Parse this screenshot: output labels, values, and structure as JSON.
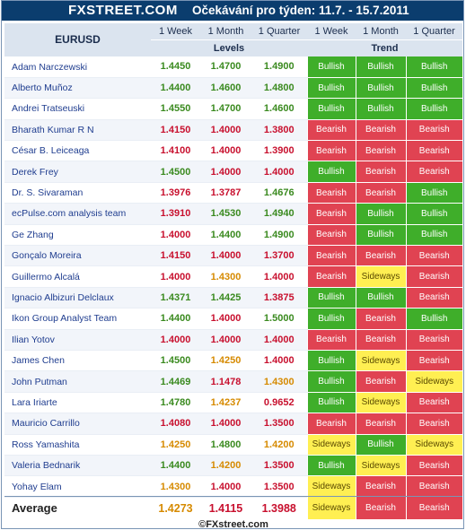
{
  "header": {
    "logo": "FXSTREET.COM",
    "title": "Očekávání pro týden: 11.7. - 15.7.2011"
  },
  "table": {
    "pair": "EURUSD",
    "periods": [
      "1 Week",
      "1 Month",
      "1 Quarter"
    ],
    "levels_label": "Levels",
    "trend_label": "Trend",
    "rows": [
      {
        "name": "Adam Narczewski",
        "levels": [
          "1.4450",
          "1.4700",
          "1.4900"
        ],
        "level_colors": [
          "green",
          "green",
          "green"
        ],
        "trend": [
          "Bullish",
          "Bullish",
          "Bullish"
        ]
      },
      {
        "name": "Alberto Muñoz",
        "levels": [
          "1.4400",
          "1.4600",
          "1.4800"
        ],
        "level_colors": [
          "green",
          "green",
          "green"
        ],
        "trend": [
          "Bullish",
          "Bullish",
          "Bullish"
        ]
      },
      {
        "name": "Andrei Tratseuski",
        "levels": [
          "1.4550",
          "1.4700",
          "1.4600"
        ],
        "level_colors": [
          "green",
          "green",
          "green"
        ],
        "trend": [
          "Bullish",
          "Bullish",
          "Bullish"
        ]
      },
      {
        "name": "Bharath Kumar R N",
        "levels": [
          "1.4150",
          "1.4000",
          "1.3800"
        ],
        "level_colors": [
          "red",
          "red",
          "red"
        ],
        "trend": [
          "Bearish",
          "Bearish",
          "Bearish"
        ]
      },
      {
        "name": "César B. Leiceaga",
        "levels": [
          "1.4100",
          "1.4000",
          "1.3900"
        ],
        "level_colors": [
          "red",
          "red",
          "red"
        ],
        "trend": [
          "Bearish",
          "Bearish",
          "Bearish"
        ]
      },
      {
        "name": "Derek Frey",
        "levels": [
          "1.4500",
          "1.4000",
          "1.4000"
        ],
        "level_colors": [
          "green",
          "red",
          "red"
        ],
        "trend": [
          "Bullish",
          "Bearish",
          "Bearish"
        ]
      },
      {
        "name": "Dr. S. Sivaraman",
        "levels": [
          "1.3976",
          "1.3787",
          "1.4676"
        ],
        "level_colors": [
          "red",
          "red",
          "green"
        ],
        "trend": [
          "Bearish",
          "Bearish",
          "Bullish"
        ]
      },
      {
        "name": "ecPulse.com analysis team",
        "levels": [
          "1.3910",
          "1.4530",
          "1.4940"
        ],
        "level_colors": [
          "red",
          "green",
          "green"
        ],
        "trend": [
          "Bearish",
          "Bullish",
          "Bullish"
        ]
      },
      {
        "name": "Ge Zhang",
        "levels": [
          "1.4000",
          "1.4400",
          "1.4900"
        ],
        "level_colors": [
          "red",
          "green",
          "green"
        ],
        "trend": [
          "Bearish",
          "Bullish",
          "Bullish"
        ]
      },
      {
        "name": "Gonçalo Moreira",
        "levels": [
          "1.4150",
          "1.4000",
          "1.3700"
        ],
        "level_colors": [
          "red",
          "red",
          "red"
        ],
        "trend": [
          "Bearish",
          "Bearish",
          "Bearish"
        ]
      },
      {
        "name": "Guillermo Alcalá",
        "levels": [
          "1.4000",
          "1.4300",
          "1.4000"
        ],
        "level_colors": [
          "red",
          "amber",
          "red"
        ],
        "trend": [
          "Bearish",
          "Sideways",
          "Bearish"
        ]
      },
      {
        "name": "Ignacio Albizuri Delclaux",
        "levels": [
          "1.4371",
          "1.4425",
          "1.3875"
        ],
        "level_colors": [
          "green",
          "green",
          "red"
        ],
        "trend": [
          "Bullish",
          "Bullish",
          "Bearish"
        ]
      },
      {
        "name": "Ikon Group Analyst Team",
        "levels": [
          "1.4400",
          "1.4000",
          "1.5000"
        ],
        "level_colors": [
          "green",
          "red",
          "green"
        ],
        "trend": [
          "Bullish",
          "Bearish",
          "Bullish"
        ]
      },
      {
        "name": "Ilian Yotov",
        "levels": [
          "1.4000",
          "1.4000",
          "1.4000"
        ],
        "level_colors": [
          "red",
          "red",
          "red"
        ],
        "trend": [
          "Bearish",
          "Bearish",
          "Bearish"
        ]
      },
      {
        "name": "James Chen",
        "levels": [
          "1.4500",
          "1.4250",
          "1.4000"
        ],
        "level_colors": [
          "green",
          "amber",
          "red"
        ],
        "trend": [
          "Bullish",
          "Sideways",
          "Bearish"
        ]
      },
      {
        "name": "John Putman",
        "levels": [
          "1.4469",
          "1.1478",
          "1.4300"
        ],
        "level_colors": [
          "green",
          "red",
          "amber"
        ],
        "trend": [
          "Bullish",
          "Bearish",
          "Sideways"
        ]
      },
      {
        "name": "Lara Iriarte",
        "levels": [
          "1.4780",
          "1.4237",
          "0.9652"
        ],
        "level_colors": [
          "green",
          "amber",
          "red"
        ],
        "trend": [
          "Bullish",
          "Sideways",
          "Bearish"
        ]
      },
      {
        "name": "Mauricio Carrillo",
        "levels": [
          "1.4080",
          "1.4000",
          "1.3500"
        ],
        "level_colors": [
          "red",
          "red",
          "red"
        ],
        "trend": [
          "Bearish",
          "Bearish",
          "Bearish"
        ]
      },
      {
        "name": "Ross Yamashita",
        "levels": [
          "1.4250",
          "1.4800",
          "1.4200"
        ],
        "level_colors": [
          "amber",
          "green",
          "amber"
        ],
        "trend": [
          "Sideways",
          "Bullish",
          "Sideways"
        ]
      },
      {
        "name": "Valeria Bednarik",
        "levels": [
          "1.4400",
          "1.4200",
          "1.3500"
        ],
        "level_colors": [
          "green",
          "amber",
          "red"
        ],
        "trend": [
          "Bullish",
          "Sideways",
          "Bearish"
        ]
      },
      {
        "name": "Yohay Elam",
        "levels": [
          "1.4300",
          "1.4000",
          "1.3500"
        ],
        "level_colors": [
          "amber",
          "red",
          "red"
        ],
        "trend": [
          "Sideways",
          "Bearish",
          "Bearish"
        ]
      }
    ],
    "average": {
      "label": "Average",
      "levels": [
        "1.4273",
        "1.4115",
        "1.3988"
      ],
      "level_colors": [
        "amber",
        "red",
        "red"
      ],
      "trend": [
        "Sideways",
        "Bearish",
        "Bearish"
      ]
    }
  },
  "footer": {
    "copyright": "©FXstreet.com"
  },
  "colors": {
    "bullish": "#3fae2a",
    "bearish": "#e04352",
    "sideways": "#ffef52",
    "header_bar": "#0b3d6e",
    "header_row": "#dbe4ef"
  }
}
